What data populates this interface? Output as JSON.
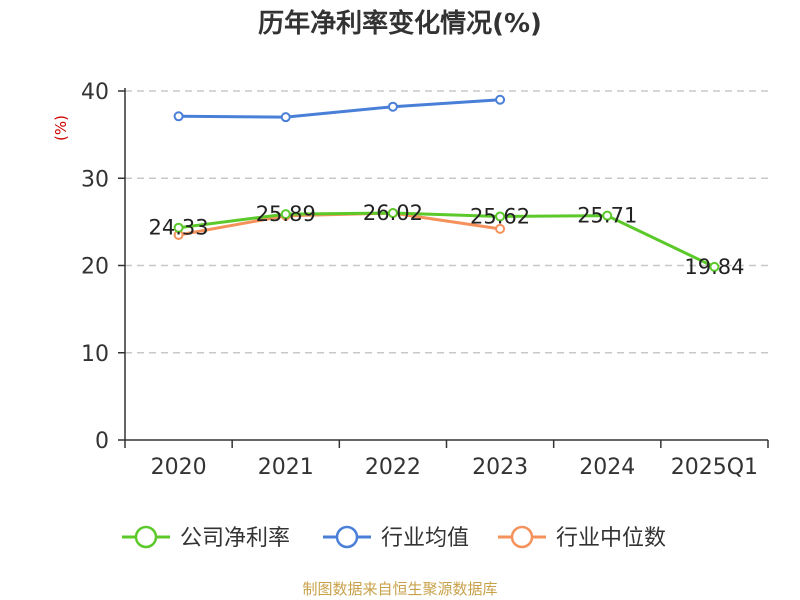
{
  "chart_data": {
    "type": "line",
    "title": "历年净利率变化情况(%)",
    "ylabel": "(%)",
    "xlabel": "",
    "categories": [
      "2020",
      "2021",
      "2022",
      "2023",
      "2024",
      "2025Q1"
    ],
    "ylim": [
      0,
      40
    ],
    "yticks": [
      "0",
      "10",
      "20",
      "30",
      "40"
    ],
    "grid": true,
    "legend_position": "bottom",
    "series": [
      {
        "name": "公司净利率",
        "color": "#5cc92a",
        "values": [
          24.33,
          25.89,
          26.02,
          25.62,
          25.71,
          19.84
        ],
        "labels": [
          "24.33",
          "25.89",
          "26.02",
          "25.62",
          "25.71",
          "19.84"
        ]
      },
      {
        "name": "行业均值",
        "color": "#4a7fd8",
        "values": [
          37.1,
          37.0,
          38.2,
          39.0,
          null,
          null
        ]
      },
      {
        "name": "行业中位数",
        "color": "#f5925b",
        "values": [
          23.5,
          25.7,
          26.0,
          24.2,
          null,
          null
        ]
      }
    ]
  },
  "source": "制图数据来自恒生聚源数据库",
  "colors": {
    "source": "#c8a24a",
    "unit": "#cc0000",
    "axis": "#333333",
    "grid": "#c8c8c8"
  }
}
